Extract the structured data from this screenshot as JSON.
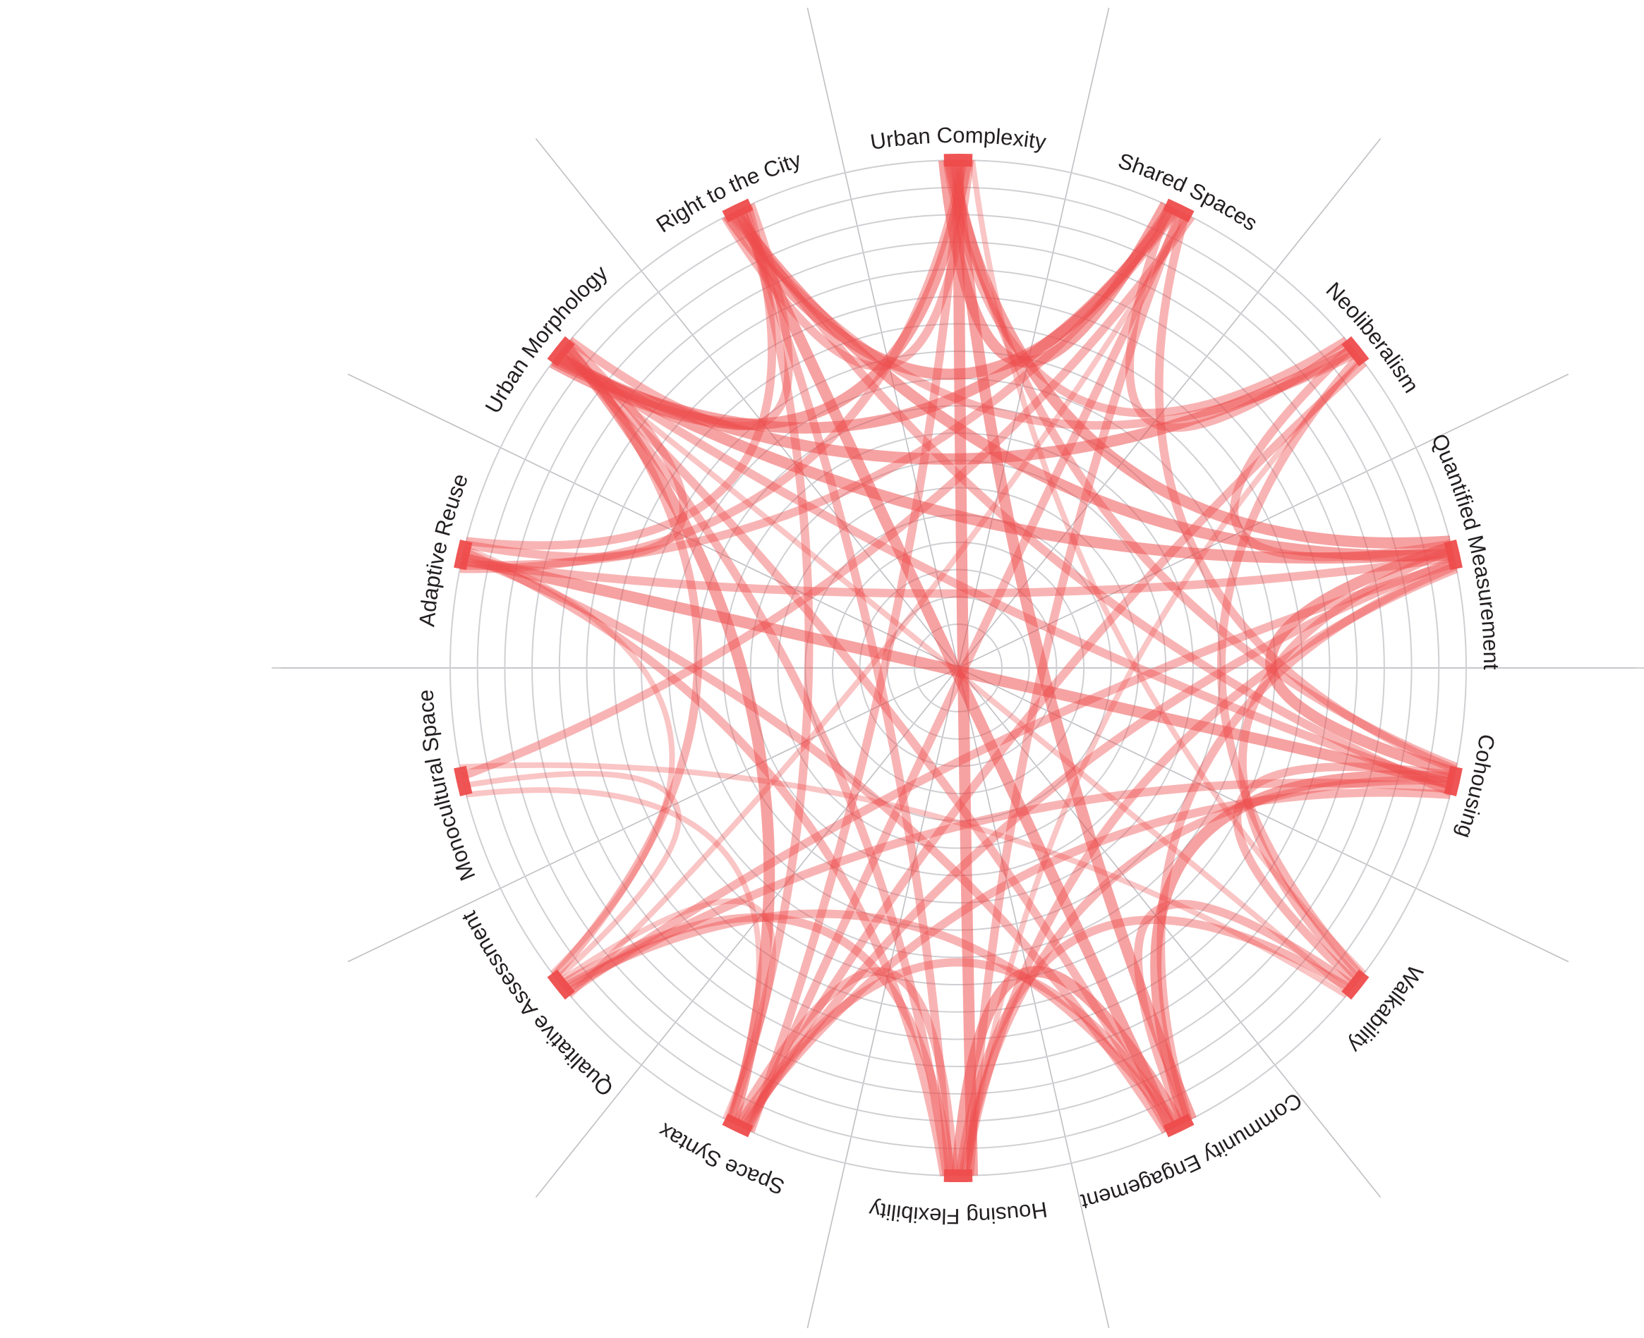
{
  "diagram": {
    "type": "chord",
    "accent_color": "#ee4c4c",
    "grid_color": "#d0d0d4",
    "ring_count": 18,
    "nodes": [
      {
        "id": "urban-complexity",
        "label": "Urban Complexity"
      },
      {
        "id": "shared-spaces",
        "label": "Shared Spaces"
      },
      {
        "id": "neoliberalism",
        "label": "Neoliberalism"
      },
      {
        "id": "quantified-measurement",
        "label": "Quantified Measurement"
      },
      {
        "id": "cohousing",
        "label": "Cohousing"
      },
      {
        "id": "walkability",
        "label": "Walkability"
      },
      {
        "id": "community-engagement",
        "label": "Community Engagement"
      },
      {
        "id": "housing-flexibility",
        "label": "Housing Flexibility"
      },
      {
        "id": "space-syntax",
        "label": "Space Syntax"
      },
      {
        "id": "qualitative-assessment",
        "label": "Qualitative Assessment"
      },
      {
        "id": "monocultural-space",
        "label": "Monocultural Space"
      },
      {
        "id": "adaptive-reuse",
        "label": "Adaptive Reuse"
      },
      {
        "id": "urban-morphology",
        "label": "Urban Morphology"
      },
      {
        "id": "right-to-the-city",
        "label": "Right to the City"
      }
    ],
    "links": [
      {
        "source": "urban-complexity",
        "target": "shared-spaces",
        "weight": 3
      },
      {
        "source": "urban-complexity",
        "target": "neoliberalism",
        "weight": 2
      },
      {
        "source": "urban-complexity",
        "target": "quantified-measurement",
        "weight": 3
      },
      {
        "source": "urban-complexity",
        "target": "cohousing",
        "weight": 2
      },
      {
        "source": "urban-complexity",
        "target": "community-engagement",
        "weight": 3
      },
      {
        "source": "urban-complexity",
        "target": "housing-flexibility",
        "weight": 3
      },
      {
        "source": "urban-complexity",
        "target": "space-syntax",
        "weight": 2
      },
      {
        "source": "urban-complexity",
        "target": "adaptive-reuse",
        "weight": 2
      },
      {
        "source": "urban-complexity",
        "target": "urban-morphology",
        "weight": 3
      },
      {
        "source": "urban-complexity",
        "target": "right-to-the-city",
        "weight": 2
      },
      {
        "source": "urban-complexity",
        "target": "walkability",
        "weight": 1
      },
      {
        "source": "shared-spaces",
        "target": "neoliberalism",
        "weight": 2
      },
      {
        "source": "shared-spaces",
        "target": "right-to-the-city",
        "weight": 3
      },
      {
        "source": "shared-spaces",
        "target": "urban-morphology",
        "weight": 3
      },
      {
        "source": "shared-spaces",
        "target": "adaptive-reuse",
        "weight": 2
      },
      {
        "source": "shared-spaces",
        "target": "housing-flexibility",
        "weight": 2
      },
      {
        "source": "shared-spaces",
        "target": "space-syntax",
        "weight": 2
      },
      {
        "source": "shared-spaces",
        "target": "cohousing",
        "weight": 2
      },
      {
        "source": "shared-spaces",
        "target": "qualitative-assessment",
        "weight": 1
      },
      {
        "source": "neoliberalism",
        "target": "quantified-measurement",
        "weight": 2
      },
      {
        "source": "neoliberalism",
        "target": "urban-morphology",
        "weight": 3
      },
      {
        "source": "neoliberalism",
        "target": "right-to-the-city",
        "weight": 2
      },
      {
        "source": "neoliberalism",
        "target": "walkability",
        "weight": 2
      },
      {
        "source": "neoliberalism",
        "target": "housing-flexibility",
        "weight": 1
      },
      {
        "source": "neoliberalism",
        "target": "space-syntax",
        "weight": 2
      },
      {
        "source": "quantified-measurement",
        "target": "cohousing",
        "weight": 3
      },
      {
        "source": "quantified-measurement",
        "target": "walkability",
        "weight": 2
      },
      {
        "source": "quantified-measurement",
        "target": "urban-morphology",
        "weight": 3
      },
      {
        "source": "quantified-measurement",
        "target": "right-to-the-city",
        "weight": 3
      },
      {
        "source": "quantified-measurement",
        "target": "adaptive-reuse",
        "weight": 2
      },
      {
        "source": "quantified-measurement",
        "target": "space-syntax",
        "weight": 2
      },
      {
        "source": "quantified-measurement",
        "target": "qualitative-assessment",
        "weight": 2
      },
      {
        "source": "quantified-measurement",
        "target": "community-engagement",
        "weight": 2
      },
      {
        "source": "quantified-measurement",
        "target": "housing-flexibility",
        "weight": 2
      },
      {
        "source": "cohousing",
        "target": "walkability",
        "weight": 2
      },
      {
        "source": "cohousing",
        "target": "community-engagement",
        "weight": 3
      },
      {
        "source": "cohousing",
        "target": "housing-flexibility",
        "weight": 2
      },
      {
        "source": "cohousing",
        "target": "adaptive-reuse",
        "weight": 3
      },
      {
        "source": "cohousing",
        "target": "urban-morphology",
        "weight": 2
      },
      {
        "source": "cohousing",
        "target": "qualitative-assessment",
        "weight": 2
      },
      {
        "source": "cohousing",
        "target": "right-to-the-city",
        "weight": 2
      },
      {
        "source": "cohousing",
        "target": "space-syntax",
        "weight": 2
      },
      {
        "source": "walkability",
        "target": "community-engagement",
        "weight": 2
      },
      {
        "source": "walkability",
        "target": "housing-flexibility",
        "weight": 2
      },
      {
        "source": "walkability",
        "target": "urban-morphology",
        "weight": 1
      },
      {
        "source": "community-engagement",
        "target": "housing-flexibility",
        "weight": 3
      },
      {
        "source": "community-engagement",
        "target": "space-syntax",
        "weight": 2
      },
      {
        "source": "community-engagement",
        "target": "qualitative-assessment",
        "weight": 2
      },
      {
        "source": "community-engagement",
        "target": "right-to-the-city",
        "weight": 3
      },
      {
        "source": "community-engagement",
        "target": "urban-morphology",
        "weight": 2
      },
      {
        "source": "community-engagement",
        "target": "adaptive-reuse",
        "weight": 2
      },
      {
        "source": "housing-flexibility",
        "target": "space-syntax",
        "weight": 2
      },
      {
        "source": "housing-flexibility",
        "target": "qualitative-assessment",
        "weight": 2
      },
      {
        "source": "housing-flexibility",
        "target": "right-to-the-city",
        "weight": 2
      },
      {
        "source": "housing-flexibility",
        "target": "urban-morphology",
        "weight": 2
      },
      {
        "source": "housing-flexibility",
        "target": "adaptive-reuse",
        "weight": 2
      },
      {
        "source": "space-syntax",
        "target": "urban-morphology",
        "weight": 3
      },
      {
        "source": "space-syntax",
        "target": "right-to-the-city",
        "weight": 2
      },
      {
        "source": "space-syntax",
        "target": "monocultural-space",
        "weight": 1
      },
      {
        "source": "space-syntax",
        "target": "qualitative-assessment",
        "weight": 1
      },
      {
        "source": "qualitative-assessment",
        "target": "monocultural-space",
        "weight": 1
      },
      {
        "source": "qualitative-assessment",
        "target": "urban-morphology",
        "weight": 2
      },
      {
        "source": "qualitative-assessment",
        "target": "adaptive-reuse",
        "weight": 1
      },
      {
        "source": "monocultural-space",
        "target": "shared-spaces",
        "weight": 2
      },
      {
        "source": "monocultural-space",
        "target": "walkability",
        "weight": 1
      },
      {
        "source": "adaptive-reuse",
        "target": "urban-morphology",
        "weight": 2
      },
      {
        "source": "adaptive-reuse",
        "target": "right-to-the-city",
        "weight": 2
      },
      {
        "source": "urban-morphology",
        "target": "right-to-the-city",
        "weight": 2
      }
    ]
  }
}
